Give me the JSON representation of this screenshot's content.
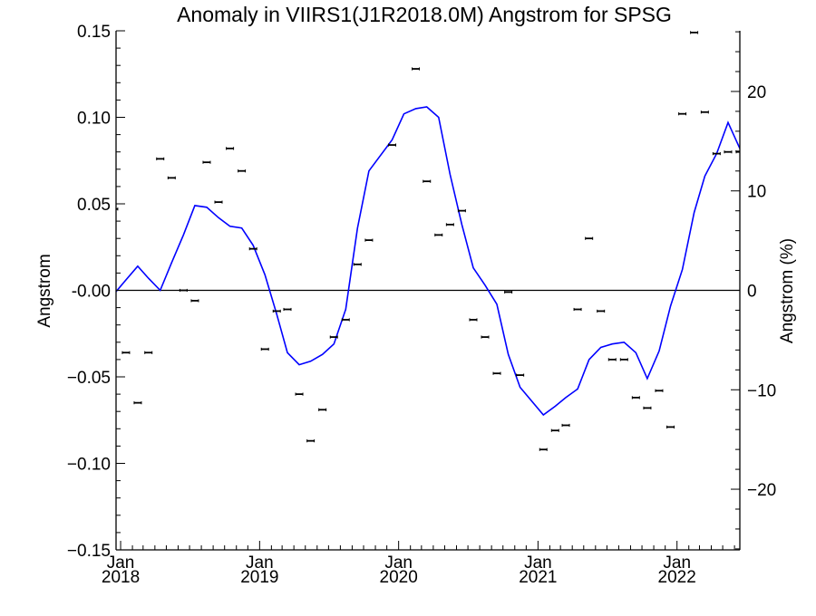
{
  "chart_data": {
    "type": "scatter",
    "title": "Anomaly in VIIRS1(J1R2018.0M) Angstrom for SPSG",
    "ylabel": "Angstrom",
    "ylabel_right": "Angstrom (%)",
    "ylim": [
      -0.15,
      0.15
    ],
    "ylim_right": [
      -26.1,
      26.1
    ],
    "xlim": [
      "2017-12-20",
      "2022-06-15"
    ],
    "y_ticks": [
      -0.15,
      -0.1,
      -0.05,
      0.0,
      0.05,
      0.1,
      0.15
    ],
    "y_tick_labels": [
      "−0.15",
      "−0.10",
      "−0.05",
      "-0.00",
      "0.05",
      "0.10",
      "0.15"
    ],
    "y_right_ticks": [
      -20,
      -10,
      0,
      10,
      20
    ],
    "y_right_tick_labels": [
      "−20",
      "−10",
      "0",
      "10",
      "20"
    ],
    "x_ticks": [
      {
        "date": "2018-01-01",
        "month": "Jan",
        "year": "2018"
      },
      {
        "date": "2019-01-01",
        "month": "Jan",
        "year": "2019"
      },
      {
        "date": "2020-01-01",
        "month": "Jan",
        "year": "2020"
      },
      {
        "date": "2021-01-01",
        "month": "Jan",
        "year": "2021"
      },
      {
        "date": "2022-01-01",
        "month": "Jan",
        "year": "2022"
      }
    ],
    "zero_line": 0,
    "colors": {
      "line": "#0000ff",
      "points": "#000000",
      "axes": "#000000"
    },
    "series": [
      {
        "kind": "points",
        "x": [
          "2017-12-15",
          "2018-01-15",
          "2018-02-15",
          "2018-03-15",
          "2018-04-15",
          "2018-05-15",
          "2018-06-15",
          "2018-07-15",
          "2018-08-15",
          "2018-09-15",
          "2018-10-15",
          "2018-11-15",
          "2018-12-15",
          "2019-01-15",
          "2019-02-15",
          "2019-03-15",
          "2019-04-15",
          "2019-05-15",
          "2019-06-15",
          "2019-07-15",
          "2019-08-15",
          "2019-09-15",
          "2019-10-15",
          "2019-12-15",
          "2020-02-15",
          "2020-03-15",
          "2020-04-15",
          "2020-05-15",
          "2020-06-15",
          "2020-07-15",
          "2020-08-15",
          "2020-09-15",
          "2020-10-15",
          "2020-11-15",
          "2021-01-15",
          "2021-02-15",
          "2021-03-15",
          "2021-04-15",
          "2021-05-15",
          "2021-06-15",
          "2021-07-15",
          "2021-08-15",
          "2021-09-15",
          "2021-10-15",
          "2021-11-15",
          "2021-12-15",
          "2022-01-15",
          "2022-02-15",
          "2022-03-15",
          "2022-04-15",
          "2022-05-15",
          "2022-06-15"
        ],
        "y": [
          0.047,
          -0.036,
          -0.065,
          -0.036,
          0.076,
          0.065,
          0.0,
          -0.006,
          0.074,
          0.051,
          0.082,
          0.069,
          0.024,
          -0.034,
          -0.012,
          -0.011,
          -0.06,
          -0.087,
          -0.069,
          -0.027,
          -0.017,
          0.015,
          0.029,
          0.084,
          0.128,
          0.063,
          0.032,
          0.038,
          0.046,
          -0.017,
          -0.027,
          -0.048,
          -0.001,
          -0.049,
          -0.092,
          -0.081,
          -0.078,
          -0.011,
          0.03,
          -0.012,
          -0.04,
          -0.04,
          -0.062,
          -0.068,
          -0.058,
          -0.079,
          0.102,
          0.149,
          0.103,
          0.079,
          0.08,
          0.08
        ]
      },
      {
        "kind": "line",
        "x": [
          "2017-12-15",
          "2018-01-15",
          "2018-02-15",
          "2018-03-15",
          "2018-04-15",
          "2018-05-15",
          "2018-06-15",
          "2018-07-15",
          "2018-08-15",
          "2018-09-15",
          "2018-10-15",
          "2018-11-15",
          "2018-12-15",
          "2019-01-15",
          "2019-02-15",
          "2019-03-15",
          "2019-04-15",
          "2019-05-15",
          "2019-06-15",
          "2019-07-15",
          "2019-08-15",
          "2019-09-15",
          "2019-10-15",
          "2019-12-15",
          "2020-01-15",
          "2020-02-15",
          "2020-03-15",
          "2020-04-15",
          "2020-05-15",
          "2020-06-15",
          "2020-07-15",
          "2020-08-15",
          "2020-09-15",
          "2020-10-15",
          "2020-11-15",
          "2021-01-15",
          "2021-02-15",
          "2021-03-15",
          "2021-04-15",
          "2021-05-15",
          "2021-06-15",
          "2021-07-15",
          "2021-08-15",
          "2021-09-15",
          "2021-10-15",
          "2021-11-15",
          "2021-12-15",
          "2022-01-15",
          "2022-02-15",
          "2022-03-15",
          "2022-04-15",
          "2022-05-15",
          "2022-06-15"
        ],
        "y": [
          -0.002,
          0.006,
          0.014,
          0.007,
          0.0,
          0.016,
          0.032,
          0.049,
          0.048,
          0.042,
          0.037,
          0.036,
          0.026,
          0.009,
          -0.014,
          -0.036,
          -0.043,
          -0.041,
          -0.037,
          -0.031,
          -0.011,
          0.036,
          0.069,
          0.087,
          0.102,
          0.105,
          0.106,
          0.1,
          0.067,
          0.038,
          0.013,
          0.003,
          -0.008,
          -0.037,
          -0.056,
          -0.072,
          -0.067,
          -0.062,
          -0.057,
          -0.04,
          -0.033,
          -0.031,
          -0.03,
          -0.036,
          -0.051,
          -0.035,
          -0.009,
          0.012,
          0.045,
          0.066,
          0.079,
          0.097,
          0.082
        ]
      }
    ]
  }
}
